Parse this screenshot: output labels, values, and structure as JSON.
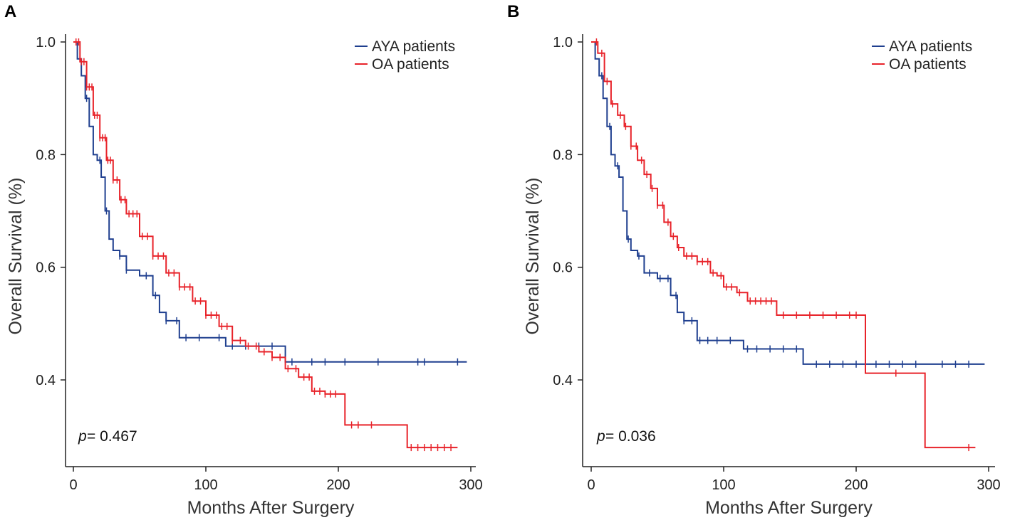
{
  "chart_data": [
    {
      "panel": "A",
      "type": "line",
      "xlabel": "Months After Surgery",
      "ylabel": "Overall Survival (%)",
      "xlim": [
        0,
        300
      ],
      "ylim": [
        0.27,
        1.0
      ],
      "xticks": [
        0,
        100,
        200,
        300
      ],
      "yticks": [
        0.4,
        0.6,
        0.8,
        1.0
      ],
      "xtick_labels": [
        "0",
        "100",
        "200",
        "300"
      ],
      "ytick_labels": [
        "0.4",
        "0.6",
        "0.8",
        "1.0"
      ],
      "p_label": "p",
      "p_value": " = 0.467",
      "series": [
        {
          "name": "AYA patients",
          "color": "#1f3f8f",
          "x": [
            0,
            3,
            6,
            9,
            12,
            15,
            18,
            21,
            24,
            27,
            30,
            35,
            40,
            50,
            60,
            65,
            70,
            80,
            90,
            100,
            115,
            130,
            158,
            160,
            297
          ],
          "y": [
            1.0,
            0.97,
            0.94,
            0.9,
            0.85,
            0.8,
            0.79,
            0.76,
            0.7,
            0.65,
            0.63,
            0.62,
            0.595,
            0.585,
            0.55,
            0.52,
            0.505,
            0.475,
            0.475,
            0.475,
            0.46,
            0.46,
            0.46,
            0.432,
            0.432
          ],
          "censor_x": [
            10,
            20,
            25,
            35,
            40,
            55,
            62,
            70,
            78,
            85,
            95,
            110,
            120,
            130,
            140,
            150,
            165,
            180,
            190,
            205,
            230,
            260,
            265,
            290
          ]
        },
        {
          "name": "OA patients",
          "color": "#e8232a",
          "x": [
            0,
            5,
            10,
            15,
            20,
            25,
            30,
            35,
            40,
            50,
            60,
            70,
            80,
            90,
            100,
            110,
            120,
            130,
            140,
            150,
            160,
            170,
            180,
            190,
            200,
            205,
            250,
            252,
            290
          ],
          "y": [
            1.0,
            0.965,
            0.92,
            0.87,
            0.83,
            0.79,
            0.755,
            0.72,
            0.695,
            0.655,
            0.62,
            0.59,
            0.565,
            0.54,
            0.515,
            0.495,
            0.47,
            0.46,
            0.45,
            0.44,
            0.42,
            0.405,
            0.38,
            0.375,
            0.375,
            0.32,
            0.32,
            0.28,
            0.28
          ],
          "censor_x": [
            2,
            4,
            6,
            8,
            10,
            12,
            14,
            16,
            18,
            20,
            22,
            24,
            26,
            28,
            30,
            33,
            36,
            39,
            42,
            45,
            48,
            52,
            56,
            60,
            64,
            68,
            72,
            76,
            80,
            84,
            88,
            92,
            96,
            100,
            104,
            108,
            112,
            116,
            120,
            126,
            132,
            138,
            144,
            150,
            156,
            162,
            168,
            174,
            178,
            182,
            186,
            190,
            194,
            198,
            210,
            215,
            225,
            255,
            260,
            265,
            270,
            275,
            280,
            285
          ]
        }
      ]
    },
    {
      "panel": "B",
      "type": "line",
      "xlabel": "Months After Surgery",
      "ylabel": "Overall Survival (%)",
      "xlim": [
        0,
        300
      ],
      "ylim": [
        0.27,
        1.0
      ],
      "xticks": [
        0,
        100,
        200,
        300
      ],
      "yticks": [
        0.4,
        0.6,
        0.8,
        1.0
      ],
      "xtick_labels": [
        "0",
        "100",
        "200",
        "300"
      ],
      "ytick_labels": [
        "0.4",
        "0.6",
        "0.8",
        "1.0"
      ],
      "p_label": "p",
      "p_value": " = 0.036",
      "series": [
        {
          "name": "AYA patients",
          "color": "#1f3f8f",
          "x": [
            0,
            3,
            6,
            9,
            12,
            15,
            18,
            21,
            24,
            27,
            30,
            35,
            40,
            50,
            60,
            65,
            70,
            80,
            90,
            100,
            115,
            130,
            158,
            160,
            297
          ],
          "y": [
            1.0,
            0.97,
            0.94,
            0.9,
            0.85,
            0.8,
            0.78,
            0.76,
            0.7,
            0.65,
            0.63,
            0.62,
            0.59,
            0.58,
            0.55,
            0.52,
            0.505,
            0.47,
            0.47,
            0.47,
            0.455,
            0.455,
            0.455,
            0.428,
            0.428
          ],
          "censor_x": [
            8,
            14,
            20,
            28,
            36,
            44,
            52,
            58,
            64,
            70,
            76,
            82,
            88,
            95,
            105,
            118,
            125,
            135,
            145,
            155,
            170,
            180,
            190,
            200,
            215,
            225,
            235,
            245,
            265,
            275,
            285
          ]
        },
        {
          "name": "OA patients",
          "color": "#e8232a",
          "x": [
            0,
            5,
            10,
            15,
            20,
            25,
            30,
            35,
            40,
            45,
            50,
            55,
            60,
            65,
            70,
            80,
            90,
            95,
            100,
            110,
            118,
            130,
            140,
            150,
            205,
            207,
            250,
            252,
            290
          ],
          "y": [
            1.0,
            0.98,
            0.93,
            0.89,
            0.87,
            0.85,
            0.815,
            0.79,
            0.765,
            0.74,
            0.71,
            0.68,
            0.655,
            0.635,
            0.62,
            0.61,
            0.59,
            0.585,
            0.565,
            0.555,
            0.54,
            0.54,
            0.515,
            0.515,
            0.515,
            0.412,
            0.412,
            0.28,
            0.28
          ],
          "censor_x": [
            4,
            8,
            12,
            16,
            22,
            26,
            30,
            34,
            38,
            42,
            46,
            50,
            54,
            58,
            62,
            66,
            72,
            76,
            80,
            84,
            88,
            92,
            98,
            102,
            106,
            112,
            120,
            124,
            128,
            132,
            136,
            145,
            155,
            165,
            175,
            185,
            195,
            200,
            230,
            285
          ]
        }
      ]
    }
  ]
}
